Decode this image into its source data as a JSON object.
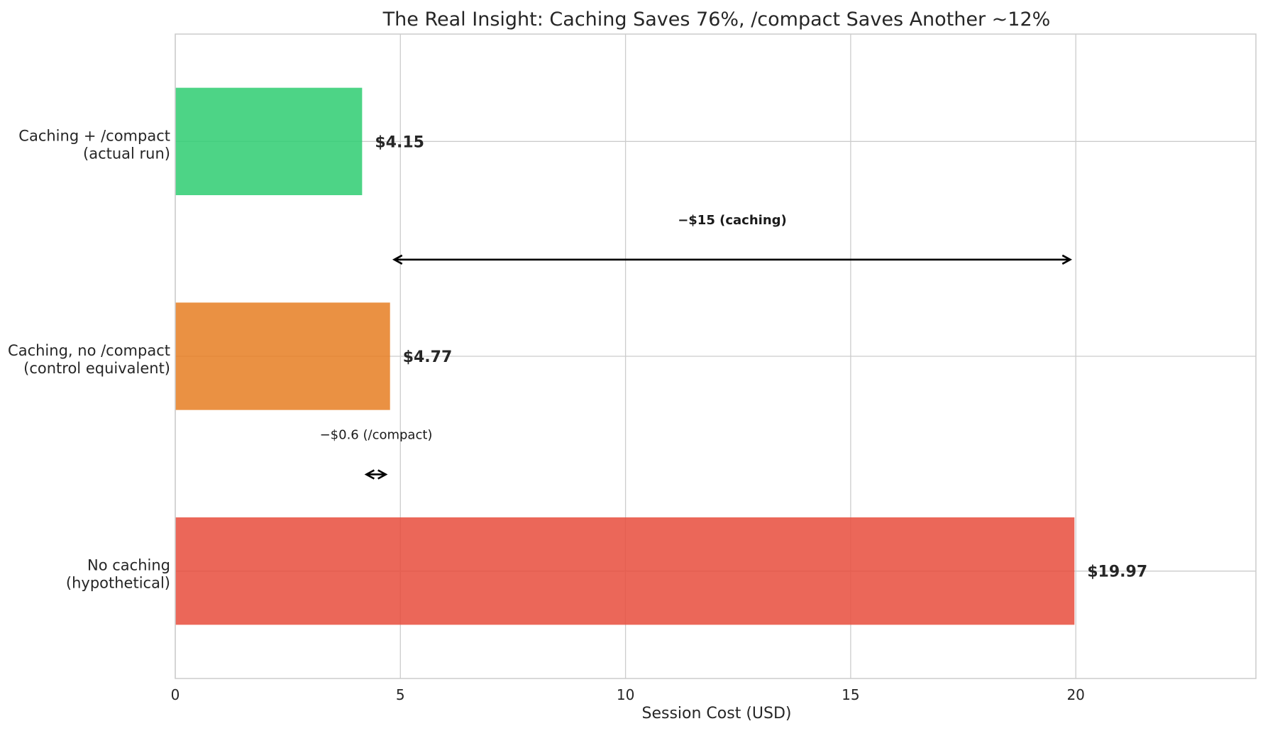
{
  "chart_data": {
    "type": "bar",
    "orientation": "horizontal",
    "title": "The Real Insight: Caching Saves 76%, /compact Saves Another ~12%",
    "xlabel": "Session Cost (USD)",
    "ylabel": "",
    "xlim": [
      0,
      24
    ],
    "xticks": [
      0,
      5,
      10,
      15,
      20
    ],
    "grid": true,
    "categories": [
      [
        "Caching + /compact",
        "(actual run)"
      ],
      [
        "Caching, no /compact",
        "(control equivalent)"
      ],
      [
        "No caching",
        "(hypothetical)"
      ]
    ],
    "values": [
      4.15,
      4.77,
      19.97
    ],
    "value_labels": [
      "$4.15",
      "$4.77",
      "$19.97"
    ],
    "colors": [
      "#2ecc71",
      "#e67e22",
      "#e74c3c"
    ],
    "annotations": [
      {
        "text": "−$15 (caching)",
        "bold": true,
        "from": 4.77,
        "to": 19.97,
        "row": 1
      },
      {
        "text": "−$0.6 (/compact)",
        "bold": false,
        "from": 4.15,
        "to": 4.77,
        "row": 2
      }
    ]
  }
}
